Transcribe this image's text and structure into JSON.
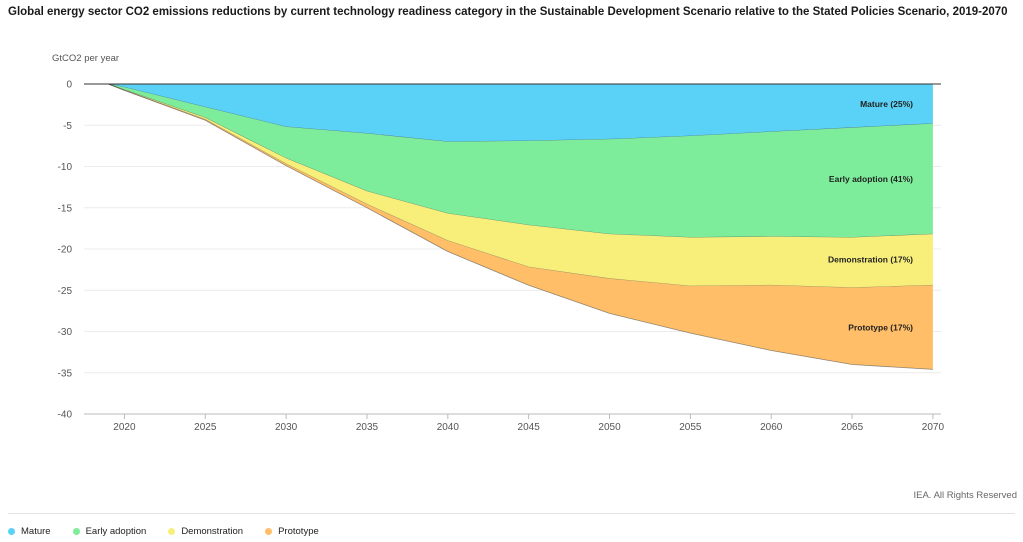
{
  "chart_data": {
    "type": "area",
    "title": "Global energy sector CO2 emissions reductions by current technology readiness category in the Sustainable Development Scenario relative to the Stated Policies Scenario, 2019-2070",
    "ylabel": "GtCO2 per year",
    "xlabel": "",
    "ylim": [
      -40,
      0
    ],
    "yticks": [
      0,
      -5,
      -10,
      -15,
      -20,
      -25,
      -30,
      -35,
      -40
    ],
    "xticks": [
      2020,
      2025,
      2030,
      2035,
      2040,
      2045,
      2050,
      2055,
      2060,
      2065,
      2070
    ],
    "xlim": [
      2017.5,
      2070.5
    ],
    "x": [
      2019,
      2020,
      2025,
      2030,
      2035,
      2040,
      2045,
      2050,
      2055,
      2060,
      2065,
      2070
    ],
    "series": [
      {
        "name": "Mature",
        "label": "Mature (25%)",
        "color": "#5ad1f6",
        "values": [
          0,
          -0.4,
          -2.8,
          -5.2,
          -6.0,
          -7.0,
          -6.9,
          -6.7,
          -6.3,
          -5.8,
          -5.3,
          -4.8
        ]
      },
      {
        "name": "Early adoption",
        "label": "Early adoption (41%)",
        "color": "#7ded9b",
        "values": [
          0,
          -0.3,
          -1.3,
          -3.8,
          -7.0,
          -8.7,
          -10.2,
          -11.5,
          -12.3,
          -12.7,
          -13.3,
          -13.4
        ]
      },
      {
        "name": "Demonstration",
        "label": "Demonstration (17%)",
        "color": "#f8ef7a",
        "values": [
          0,
          -0.05,
          -0.2,
          -0.7,
          -1.6,
          -3.3,
          -5.1,
          -5.4,
          -5.9,
          -5.9,
          -6.1,
          -6.2
        ]
      },
      {
        "name": "Prototype",
        "label": "Prototype (17%)",
        "color": "#ffbe67",
        "values": [
          0,
          -0.02,
          -0.1,
          -0.2,
          -0.4,
          -1.3,
          -2.2,
          -4.2,
          -5.7,
          -7.9,
          -9.3,
          -10.2
        ]
      }
    ]
  },
  "credit": "IEA. All Rights Reserved",
  "legend": [
    {
      "name": "Mature",
      "color": "#5ad1f6"
    },
    {
      "name": "Early adoption",
      "color": "#7ded9b"
    },
    {
      "name": "Demonstration",
      "color": "#f8ef7a"
    },
    {
      "name": "Prototype",
      "color": "#ffbe67"
    }
  ]
}
